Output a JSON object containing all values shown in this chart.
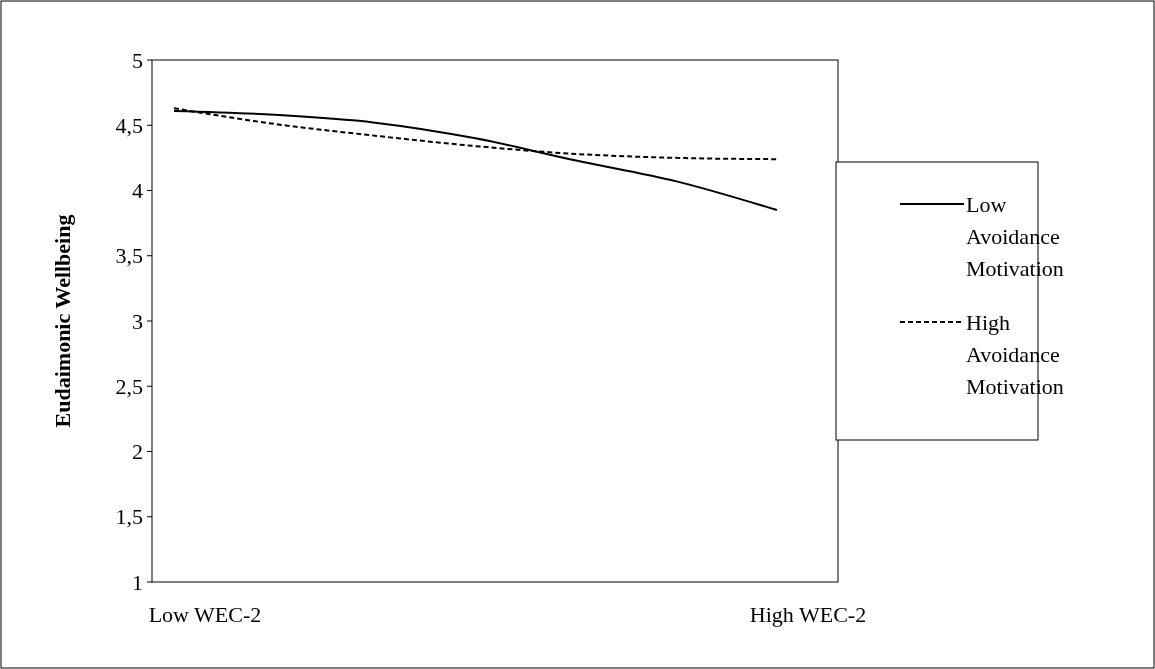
{
  "chart_data": {
    "type": "line",
    "ylabel": "Eudaimonic Wellbeing",
    "categories": [
      "Low WEC-2",
      null,
      null,
      null,
      null,
      null,
      "High WEC-2"
    ],
    "ylim": [
      1,
      5
    ],
    "yticks": [
      1,
      {
        "value": 1.5,
        "label": "1,5"
      },
      2,
      {
        "value": 2.5,
        "label": "2,5"
      },
      3,
      {
        "value": 3.5,
        "label": "3,5"
      },
      4,
      {
        "value": 4.5,
        "label": "4,5"
      },
      5
    ],
    "grid": false,
    "legend": "right",
    "marker": "none",
    "series": [
      {
        "name": "Low Avoidance Motivation",
        "color": "#000000",
        "line_style": "solid",
        "values": [
          4.61,
          4.58,
          4.52,
          4.4,
          4.23,
          4.07,
          3.85
        ]
      },
      {
        "name": "High Avoidance Motivation",
        "color": "#000000",
        "line_style": "dashed",
        "values": [
          4.63,
          4.51,
          4.42,
          4.34,
          4.28,
          4.25,
          4.24
        ]
      }
    ]
  }
}
